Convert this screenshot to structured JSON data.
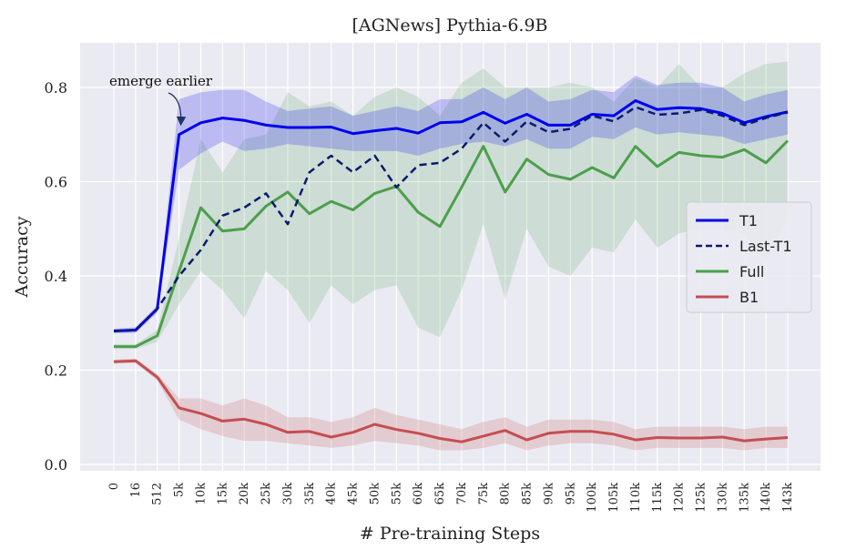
{
  "chart_data": {
    "type": "line",
    "title": "[AGNews] Pythia-6.9B",
    "xlabel": "# Pre-training Steps",
    "ylabel": "Accuracy",
    "categories": [
      "0",
      "16",
      "512",
      "5k",
      "10k",
      "15k",
      "20k",
      "25k",
      "30k",
      "35k",
      "40k",
      "45k",
      "50k",
      "55k",
      "60k",
      "65k",
      "70k",
      "75k",
      "80k",
      "85k",
      "90k",
      "95k",
      "100k",
      "105k",
      "110k",
      "115k",
      "120k",
      "125k",
      "130k",
      "135k",
      "140k",
      "143k"
    ],
    "ylim": [
      0.0,
      0.88
    ],
    "yticks": [
      "0.0",
      "0.2",
      "0.4",
      "0.6",
      "0.8"
    ],
    "grid": true,
    "legend_position": "right",
    "annotation": {
      "text": "emerge earlier",
      "category": "5k",
      "value": 0.7
    },
    "series": [
      {
        "name": "T1",
        "color": "#0000ee",
        "dash": false,
        "values": [
          0.283,
          0.285,
          0.33,
          0.7,
          0.725,
          0.735,
          0.73,
          0.72,
          0.715,
          0.715,
          0.716,
          0.702,
          0.708,
          0.713,
          0.703,
          0.725,
          0.727,
          0.747,
          0.724,
          0.743,
          0.72,
          0.72,
          0.743,
          0.74,
          0.772,
          0.753,
          0.757,
          0.755,
          0.745,
          0.725,
          0.738,
          0.748
        ],
        "lower": [
          0.278,
          0.279,
          0.322,
          0.625,
          0.66,
          0.685,
          0.665,
          0.67,
          0.68,
          0.675,
          0.67,
          0.665,
          0.665,
          0.665,
          0.655,
          0.67,
          0.68,
          0.685,
          0.675,
          0.69,
          0.67,
          0.67,
          0.695,
          0.69,
          0.715,
          0.7,
          0.705,
          0.7,
          0.695,
          0.68,
          0.69,
          0.7
        ],
        "upper": [
          0.288,
          0.291,
          0.338,
          0.775,
          0.79,
          0.795,
          0.795,
          0.77,
          0.75,
          0.755,
          0.76,
          0.74,
          0.75,
          0.76,
          0.75,
          0.775,
          0.775,
          0.8,
          0.775,
          0.8,
          0.77,
          0.775,
          0.795,
          0.79,
          0.825,
          0.805,
          0.81,
          0.81,
          0.8,
          0.77,
          0.785,
          0.795
        ]
      },
      {
        "name": "Last-T1",
        "color": "#0a1a6e",
        "dash": true,
        "values": [
          0.283,
          0.285,
          0.33,
          0.4,
          0.455,
          0.528,
          0.545,
          0.575,
          0.51,
          0.62,
          0.655,
          0.62,
          0.655,
          0.588,
          0.635,
          0.64,
          0.67,
          0.725,
          0.685,
          0.728,
          0.705,
          0.712,
          0.74,
          0.728,
          0.758,
          0.742,
          0.745,
          0.752,
          0.74,
          0.72,
          0.735,
          0.747
        ]
      },
      {
        "name": "Full",
        "color": "#4c9f4c",
        "dash": false,
        "values": [
          0.25,
          0.25,
          0.273,
          0.41,
          0.545,
          0.495,
          0.5,
          0.548,
          0.578,
          0.532,
          0.558,
          0.54,
          0.575,
          0.59,
          0.535,
          0.505,
          0.588,
          0.675,
          0.578,
          0.648,
          0.615,
          0.605,
          0.63,
          0.608,
          0.675,
          0.632,
          0.662,
          0.655,
          0.652,
          0.668,
          0.64,
          0.687
        ],
        "lower": [
          0.245,
          0.245,
          0.26,
          0.34,
          0.41,
          0.37,
          0.31,
          0.41,
          0.37,
          0.3,
          0.38,
          0.34,
          0.37,
          0.38,
          0.29,
          0.27,
          0.37,
          0.51,
          0.35,
          0.5,
          0.42,
          0.4,
          0.46,
          0.45,
          0.52,
          0.46,
          0.49,
          0.5,
          0.5,
          0.49,
          0.43,
          0.52
        ],
        "upper": [
          0.255,
          0.255,
          0.285,
          0.48,
          0.69,
          0.62,
          0.69,
          0.7,
          0.79,
          0.76,
          0.77,
          0.74,
          0.78,
          0.8,
          0.78,
          0.74,
          0.81,
          0.84,
          0.8,
          0.8,
          0.8,
          0.81,
          0.8,
          0.77,
          0.82,
          0.8,
          0.85,
          0.8,
          0.8,
          0.83,
          0.85,
          0.855
        ]
      },
      {
        "name": "B1",
        "color": "#c44e52",
        "dash": false,
        "values": [
          0.218,
          0.22,
          0.185,
          0.12,
          0.108,
          0.092,
          0.096,
          0.085,
          0.068,
          0.07,
          0.058,
          0.068,
          0.085,
          0.074,
          0.066,
          0.055,
          0.048,
          0.06,
          0.072,
          0.052,
          0.066,
          0.07,
          0.07,
          0.064,
          0.052,
          0.057,
          0.056,
          0.056,
          0.058,
          0.05,
          0.054,
          0.057
        ],
        "lower": [
          0.214,
          0.215,
          0.178,
          0.095,
          0.075,
          0.06,
          0.05,
          0.05,
          0.045,
          0.04,
          0.035,
          0.04,
          0.05,
          0.045,
          0.04,
          0.03,
          0.03,
          0.035,
          0.045,
          0.03,
          0.04,
          0.045,
          0.045,
          0.04,
          0.03,
          0.035,
          0.035,
          0.035,
          0.035,
          0.03,
          0.035,
          0.035
        ],
        "upper": [
          0.222,
          0.225,
          0.192,
          0.14,
          0.14,
          0.125,
          0.14,
          0.125,
          0.1,
          0.1,
          0.09,
          0.1,
          0.12,
          0.105,
          0.095,
          0.085,
          0.075,
          0.09,
          0.1,
          0.08,
          0.095,
          0.095,
          0.095,
          0.09,
          0.075,
          0.08,
          0.08,
          0.08,
          0.08,
          0.075,
          0.08,
          0.08
        ]
      }
    ]
  }
}
